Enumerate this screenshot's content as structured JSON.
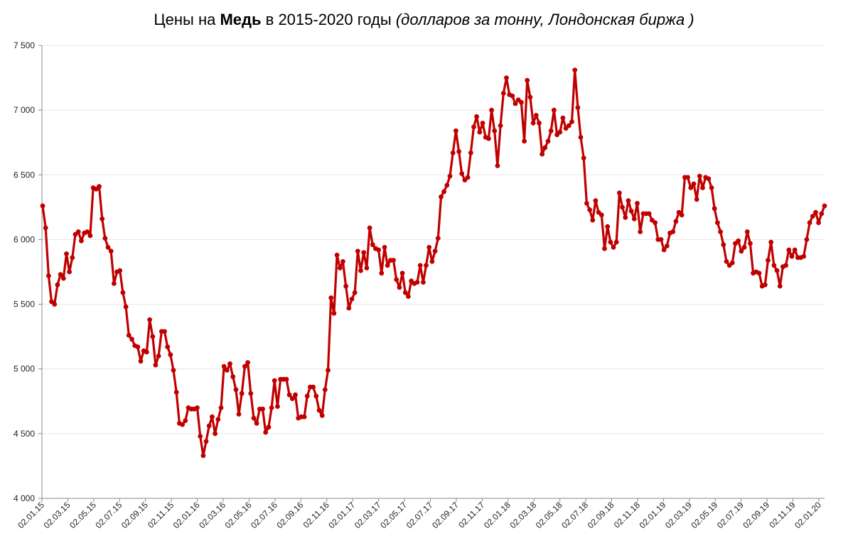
{
  "title": {
    "part1": "Цены на ",
    "bold": "Медь",
    "part2": " в 2015-2020 годы ",
    "italic": "(долларов за тонну, Лондонская биржа )"
  },
  "colors": {
    "series": "#c00000",
    "grid": "#e6e6e6",
    "axis": "#888888"
  },
  "chart_data": {
    "type": "line",
    "title": "Цены на Медь в 2015-2020 годы (долларов за тонну, Лондонская биржа )",
    "xlabel": "",
    "ylabel": "",
    "ylim": [
      4000,
      7500
    ],
    "grid": true,
    "y_ticks": [
      4000,
      4500,
      5000,
      5500,
      6000,
      6500,
      7000,
      7500
    ],
    "y_tick_labels": [
      "4 000",
      "4 500",
      "5 000",
      "5 500",
      "6 000",
      "6 500",
      "7 000",
      "7 500"
    ],
    "x_tick_labels": [
      "02.01.15",
      "02.03.15",
      "02.05.15",
      "02.07.15",
      "02.09.15",
      "02.11.15",
      "02.01.16",
      "02.03.16",
      "02.05.16",
      "02.07.16",
      "02.09.16",
      "02.11.16",
      "02.01.17",
      "02.03.17",
      "02.05.17",
      "02.07.17",
      "02.09.17",
      "02.11.17",
      "02.01.18",
      "02.03.18",
      "02.05.18",
      "02.07.18",
      "02.09.18",
      "02.11.18",
      "02.01.19",
      "02.03.19",
      "02.05.19",
      "02.07.19",
      "02.09.19",
      "02.11.19",
      "02.01.20"
    ],
    "series": [
      {
        "values": [
          6260,
          6090,
          5720,
          5520,
          5500,
          5650,
          5730,
          5700,
          5890,
          5750,
          5860,
          6040,
          6060,
          5990,
          6050,
          6060,
          6030,
          6400,
          6390,
          6410,
          6160,
          6010,
          5940,
          5910,
          5660,
          5750,
          5760,
          5590,
          5480,
          5260,
          5230,
          5180,
          5170,
          5060,
          5140,
          5130,
          5380,
          5250,
          5030,
          5100,
          5290,
          5290,
          5170,
          5110,
          4990,
          4820,
          4580,
          4570,
          4600,
          4700,
          4690,
          4690,
          4700,
          4480,
          4330,
          4440,
          4560,
          4630,
          4500,
          4610,
          4700,
          5020,
          4990,
          5040,
          4940,
          4840,
          4650,
          4810,
          5020,
          5050,
          4810,
          4620,
          4580,
          4690,
          4690,
          4510,
          4550,
          4700,
          4910,
          4710,
          4920,
          4920,
          4920,
          4800,
          4770,
          4800,
          4620,
          4630,
          4630,
          4790,
          4860,
          4860,
          4790,
          4680,
          4640,
          4840,
          4990,
          5550,
          5430,
          5880,
          5780,
          5830,
          5640,
          5470,
          5540,
          5590,
          5910,
          5760,
          5900,
          5780,
          6090,
          5960,
          5930,
          5920,
          5740,
          5940,
          5800,
          5840,
          5840,
          5690,
          5630,
          5740,
          5590,
          5560,
          5680,
          5660,
          5670,
          5800,
          5670,
          5800,
          5940,
          5830,
          5910,
          6010,
          6330,
          6370,
          6420,
          6490,
          6670,
          6840,
          6680,
          6510,
          6460,
          6480,
          6670,
          6870,
          6950,
          6830,
          6900,
          6790,
          6780,
          7000,
          6840,
          6570,
          6880,
          7130,
          7250,
          7120,
          7110,
          7050,
          7080,
          7060,
          6760,
          7230,
          7100,
          6900,
          6960,
          6900,
          6660,
          6710,
          6760,
          6840,
          7000,
          6810,
          6830,
          6940,
          6860,
          6880,
          6910,
          7310,
          7020,
          6790,
          6630,
          6280,
          6230,
          6150,
          6300,
          6210,
          6190,
          5930,
          6100,
          5980,
          5940,
          5980,
          6360,
          6250,
          6170,
          6300,
          6220,
          6160,
          6280,
          6060,
          6200,
          6200,
          6200,
          6150,
          6130,
          6000,
          6000,
          5920,
          5950,
          6050,
          6060,
          6140,
          6210,
          6190,
          6480,
          6480,
          6400,
          6430,
          6310,
          6490,
          6400,
          6480,
          6470,
          6400,
          6240,
          6130,
          6060,
          5960,
          5830,
          5800,
          5820,
          5970,
          5990,
          5910,
          5940,
          6060,
          5970,
          5740,
          5750,
          5740,
          5640,
          5650,
          5840,
          5980,
          5800,
          5760,
          5640,
          5790,
          5800,
          5920,
          5870,
          5920,
          5860,
          5860,
          5870,
          6000,
          6130,
          6180,
          6210,
          6130,
          6200,
          6260
        ]
      }
    ]
  }
}
